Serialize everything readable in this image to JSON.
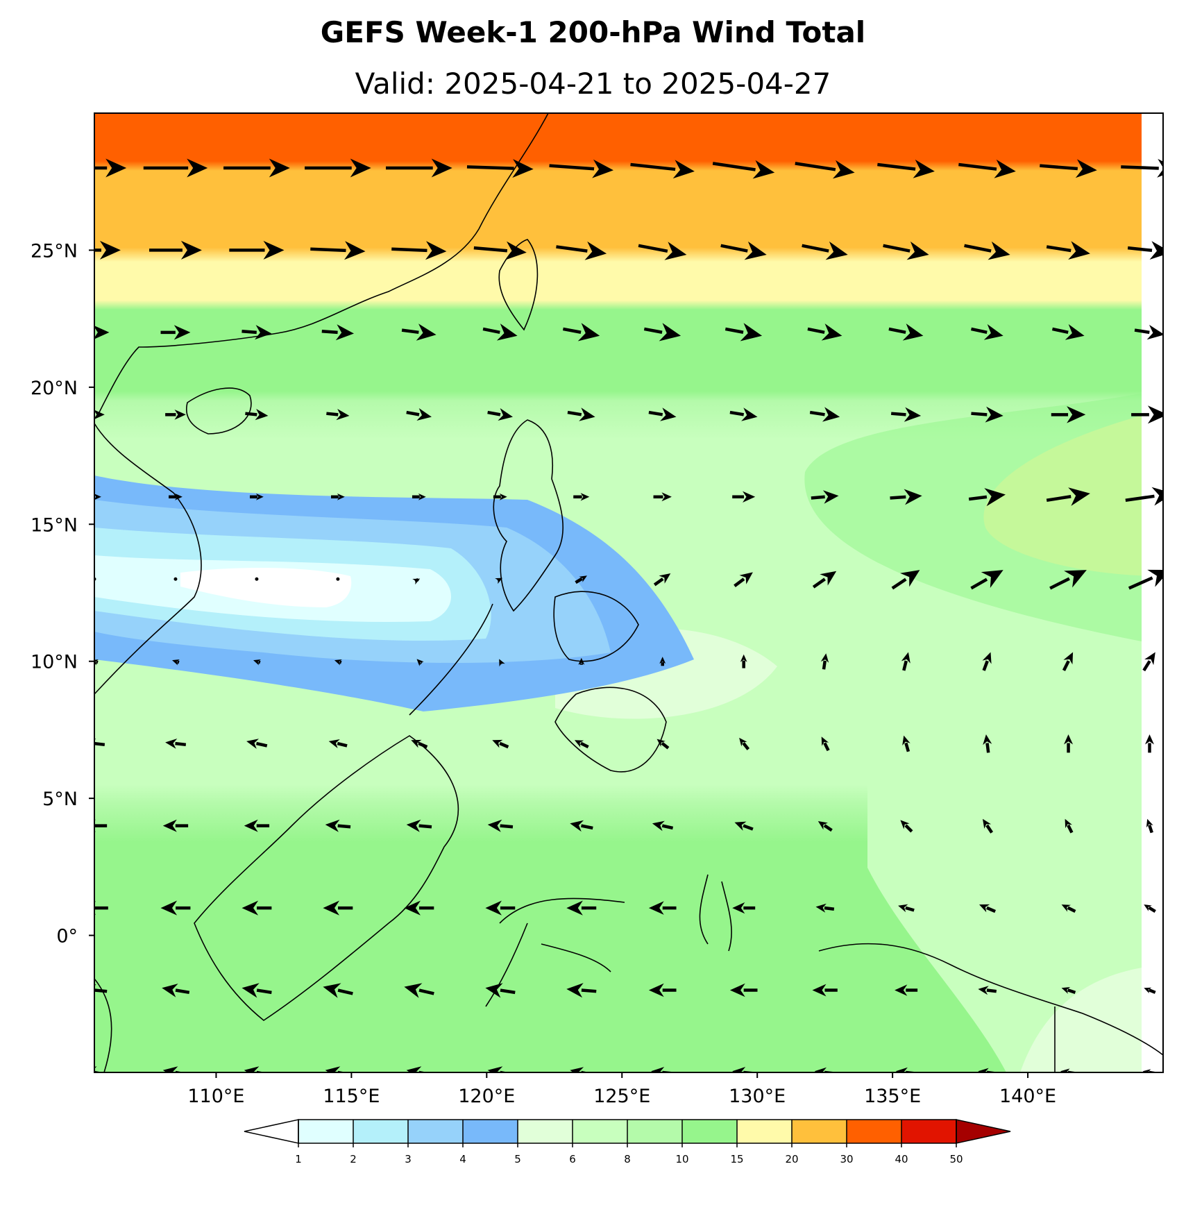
{
  "header": {
    "title": "GEFS Week-1 200-hPa Wind Total",
    "subtitle": "Valid: 2025-04-21 to 2025-04-27"
  },
  "map": {
    "lon_range": [
      105.5,
      145
    ],
    "lat_range": [
      -5,
      30
    ],
    "lon_ticks": [
      {
        "value": 110,
        "label": "110°E"
      },
      {
        "value": 115,
        "label": "115°E"
      },
      {
        "value": 120,
        "label": "120°E"
      },
      {
        "value": 125,
        "label": "125°E"
      },
      {
        "value": 130,
        "label": "130°E"
      },
      {
        "value": 135,
        "label": "135°E"
      },
      {
        "value": 140,
        "label": "140°E"
      }
    ],
    "lat_ticks": [
      {
        "value": 25,
        "label": "25°N"
      },
      {
        "value": 20,
        "label": "20°N"
      },
      {
        "value": 15,
        "label": "15°N"
      },
      {
        "value": 10,
        "label": "10°N"
      },
      {
        "value": 5,
        "label": "5°N"
      },
      {
        "value": 0,
        "label": "0°"
      }
    ],
    "wind_vectors": {
      "lons": [
        105.5,
        108.5,
        111.5,
        114.5,
        117.5,
        120.5,
        123.5,
        126.5,
        129.5,
        132.5,
        135.5,
        138.5,
        141.5,
        144.5
      ],
      "lats": [
        28,
        25,
        22,
        19,
        16,
        13,
        10,
        7,
        4,
        1,
        -2,
        -5
      ],
      "rows": [
        {
          "lat": 28,
          "u": [
            28,
            28,
            29,
            29,
            29,
            29,
            28,
            28,
            27,
            26,
            25,
            25,
            25,
            25
          ],
          "v": [
            0,
            0,
            0,
            0,
            0,
            -1,
            -2,
            -3,
            -4,
            -4,
            -3,
            -3,
            -2,
            -1
          ]
        },
        {
          "lat": 25,
          "u": [
            23,
            23,
            24,
            24,
            24,
            23,
            22,
            21,
            20,
            20,
            20,
            20,
            19,
            19
          ],
          "v": [
            0,
            0,
            0,
            -1,
            -1,
            -2,
            -3,
            -4,
            -4,
            -4,
            -4,
            -4,
            -3,
            -2
          ]
        },
        {
          "lat": 22,
          "u": [
            13,
            13,
            13,
            14,
            15,
            15,
            16,
            16,
            16,
            15,
            15,
            14,
            14,
            13
          ],
          "v": [
            0,
            0,
            -1,
            -1,
            -2,
            -3,
            -3,
            -3,
            -3,
            -3,
            -3,
            -3,
            -3,
            -2
          ]
        },
        {
          "lat": 19,
          "u": [
            9,
            9,
            10,
            10,
            11,
            11,
            12,
            12,
            12,
            13,
            13,
            14,
            15,
            16
          ],
          "v": [
            0,
            0,
            -1,
            -1,
            -2,
            -2,
            -2,
            -2,
            -2,
            -2,
            -1,
            -1,
            0,
            0
          ]
        },
        {
          "lat": 16,
          "u": [
            6,
            6,
            6,
            6,
            6,
            6,
            7,
            8,
            10,
            12,
            14,
            16,
            19,
            21
          ],
          "v": [
            0,
            0,
            0,
            0,
            0,
            0,
            0,
            0,
            0,
            1,
            1,
            2,
            3,
            3
          ]
        },
        {
          "lat": 13,
          "u": [
            0,
            0,
            0,
            0,
            0.8,
            2,
            5,
            7,
            8,
            10,
            12,
            14,
            16,
            18
          ],
          "v": [
            0,
            0,
            0,
            0,
            0.4,
            1,
            3,
            5,
            6,
            7,
            8,
            8,
            8,
            8
          ]
        },
        {
          "lat": 10,
          "u": [
            -3,
            -3,
            -3,
            -3,
            -2,
            -1,
            0,
            0,
            0,
            1,
            2,
            3,
            4,
            5
          ],
          "v": [
            1,
            1,
            1,
            1,
            2,
            2,
            3,
            4,
            6,
            7,
            8,
            8,
            8,
            8
          ]
        },
        {
          "lat": 7,
          "u": [
            -9,
            -9,
            -9,
            -8,
            -7,
            -7,
            -6,
            -5,
            -4,
            -3,
            -2,
            -1,
            0,
            0
          ],
          "v": [
            1,
            1,
            2,
            2,
            3,
            3,
            3,
            4,
            5,
            6,
            7,
            8,
            8,
            8
          ]
        },
        {
          "lat": 4,
          "u": [
            -11,
            -11,
            -11,
            -11,
            -11,
            -11,
            -10,
            -9,
            -8,
            -6,
            -5,
            -4,
            -3,
            -2
          ],
          "v": [
            0,
            0,
            0,
            1,
            1,
            1,
            2,
            2,
            3,
            4,
            5,
            6,
            6,
            6
          ]
        },
        {
          "lat": 1,
          "u": [
            -12,
            -13,
            -13,
            -13,
            -13,
            -13,
            -13,
            -12,
            -10,
            -8,
            -7,
            -7,
            -6,
            -5
          ],
          "v": [
            0,
            0,
            0,
            0,
            0,
            0,
            0,
            0,
            0,
            1,
            2,
            3,
            3,
            3
          ]
        },
        {
          "lat": -2,
          "u": [
            -11,
            -12,
            -13,
            -13,
            -13,
            -13,
            -13,
            -12,
            -12,
            -11,
            -10,
            -8,
            -6,
            -5
          ],
          "v": [
            1,
            2,
            2,
            3,
            3,
            2,
            1,
            0,
            0,
            0,
            0,
            1,
            2,
            2
          ]
        },
        {
          "lat": -5,
          "u": [
            -11,
            -11,
            -11,
            -11,
            -11,
            -11,
            -10,
            -10,
            -10,
            -9,
            -9,
            -8,
            -7,
            -6
          ],
          "v": [
            2,
            2,
            2,
            2,
            2,
            2,
            2,
            1,
            1,
            1,
            1,
            1,
            1,
            1
          ]
        }
      ]
    }
  },
  "colorbar": {
    "levels": [
      1,
      2,
      3,
      4,
      5,
      6,
      8,
      10,
      15,
      20,
      30,
      40,
      50
    ],
    "labels": [
      "1",
      "2",
      "3",
      "4",
      "5",
      "6",
      "8",
      "10",
      "15",
      "20",
      "30",
      "40",
      "50"
    ],
    "colors": [
      "#e0ffff",
      "#b4f0fa",
      "#96d2fa",
      "#78b9fa",
      "#e1ffd9",
      "#c8ffbe",
      "#b4faaa",
      "#96f58c",
      "#fffaaa",
      "#ffc03c",
      "#ff6000",
      "#e11400",
      "#a50000"
    ],
    "under_color": "#ffffff",
    "over_color": "#a50000"
  }
}
